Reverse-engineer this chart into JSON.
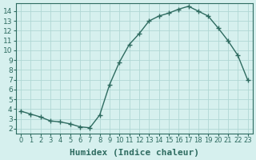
{
  "x": [
    0,
    1,
    2,
    3,
    4,
    5,
    6,
    7,
    8,
    9,
    10,
    11,
    12,
    13,
    14,
    15,
    16,
    17,
    18,
    19,
    20,
    21,
    22,
    23
  ],
  "y": [
    3.8,
    3.5,
    3.2,
    2.8,
    2.7,
    2.5,
    2.2,
    2.1,
    3.4,
    6.5,
    8.8,
    10.6,
    11.7,
    13.0,
    13.5,
    13.8,
    14.2,
    14.5,
    14.0,
    13.5,
    12.3,
    11.0,
    9.5,
    7.0
  ],
  "xlabel": "Humidex (Indice chaleur)",
  "ylabel": "",
  "title": "",
  "line_color": "#2e6b60",
  "marker_color": "#2e6b60",
  "bg_color": "#d6f0ee",
  "grid_color": "#b0d8d4",
  "xlim": [
    -0.5,
    23.5
  ],
  "ylim": [
    1.5,
    14.8
  ],
  "yticks": [
    2,
    3,
    4,
    5,
    6,
    7,
    8,
    9,
    10,
    11,
    12,
    13,
    14
  ],
  "xtick_labels": [
    "0",
    "1",
    "2",
    "3",
    "4",
    "5",
    "6",
    "7",
    "8",
    "9",
    "10",
    "11",
    "12",
    "13",
    "14",
    "15",
    "16",
    "17",
    "18",
    "19",
    "20",
    "21",
    "22",
    "23"
  ],
  "xlabel_fontsize": 8,
  "tick_fontsize": 6.5,
  "label_color": "#2e6b60"
}
